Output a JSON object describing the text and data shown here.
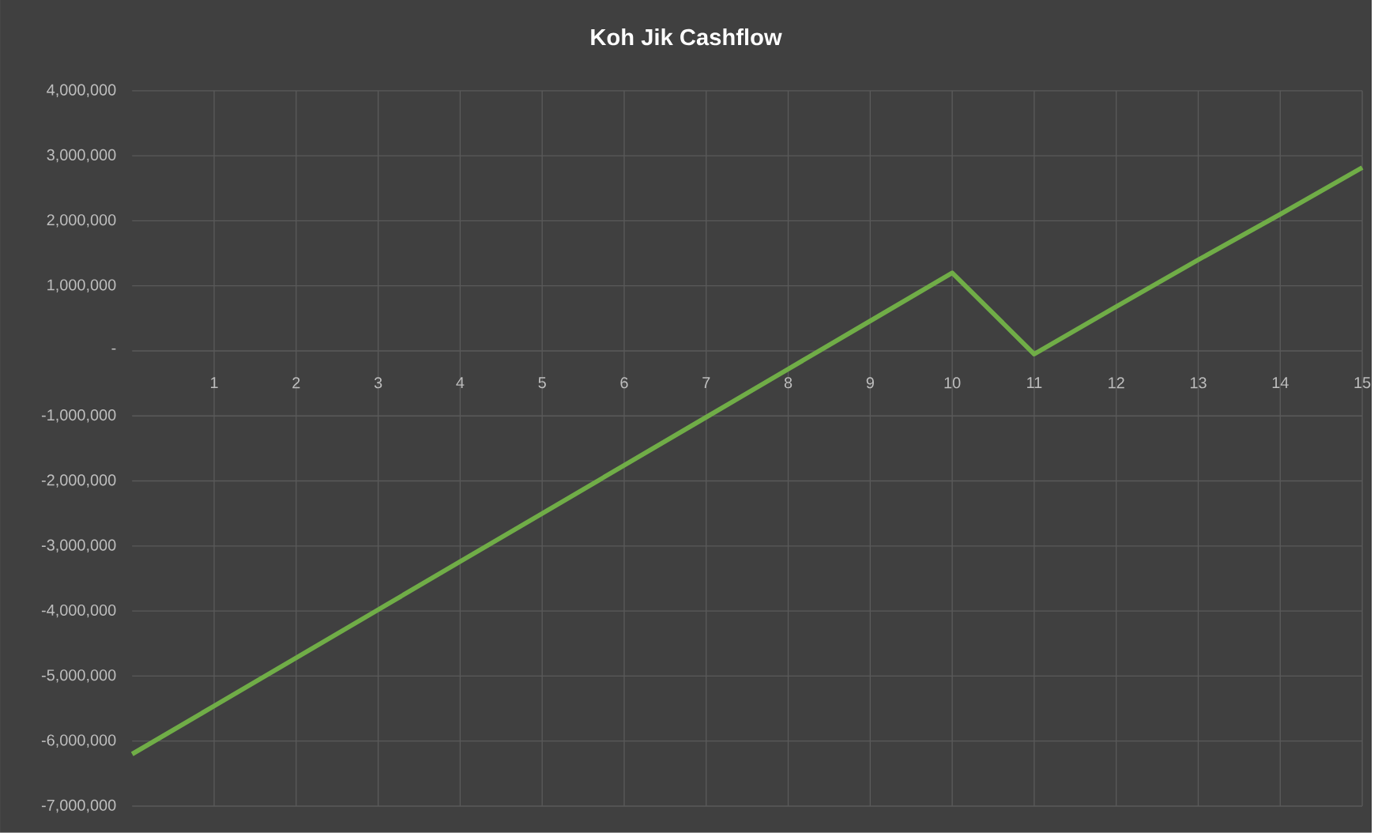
{
  "chart_data": {
    "type": "line",
    "title": "Koh Jik Cashflow",
    "x": [
      0,
      1,
      2,
      3,
      4,
      5,
      6,
      7,
      8,
      9,
      10,
      11,
      12,
      13,
      14,
      15
    ],
    "series": [
      {
        "color": "#70ad47",
        "values": [
          -6200000,
          -5460000,
          -4720000,
          -3980000,
          -3240000,
          -2500000,
          -1760000,
          -1020000,
          -280000,
          460000,
          1200000,
          -50000,
          680000,
          1400000,
          2100000,
          2820000
        ]
      }
    ],
    "xlim": [
      0,
      15
    ],
    "xticks": [
      1,
      2,
      3,
      4,
      5,
      6,
      7,
      8,
      9,
      10,
      11,
      12,
      13,
      14,
      15
    ],
    "ylim": [
      -7000000,
      4000000
    ],
    "yticks": [
      {
        "value": -7000000,
        "label": "-7,000,000"
      },
      {
        "value": -6000000,
        "label": "-6,000,000"
      },
      {
        "value": -5000000,
        "label": "-5,000,000"
      },
      {
        "value": -4000000,
        "label": "-4,000,000"
      },
      {
        "value": -3000000,
        "label": "-3,000,000"
      },
      {
        "value": -2000000,
        "label": "-2,000,000"
      },
      {
        "value": -1000000,
        "label": "-1,000,000"
      },
      {
        "value": 0,
        "label": "-"
      },
      {
        "value": 1000000,
        "label": "1,000,000"
      },
      {
        "value": 2000000,
        "label": "2,000,000"
      },
      {
        "value": 3000000,
        "label": "3,000,000"
      },
      {
        "value": 4000000,
        "label": "4,000,000"
      }
    ],
    "grid": true,
    "marker": "none",
    "line_style": "solid",
    "legend": false
  }
}
